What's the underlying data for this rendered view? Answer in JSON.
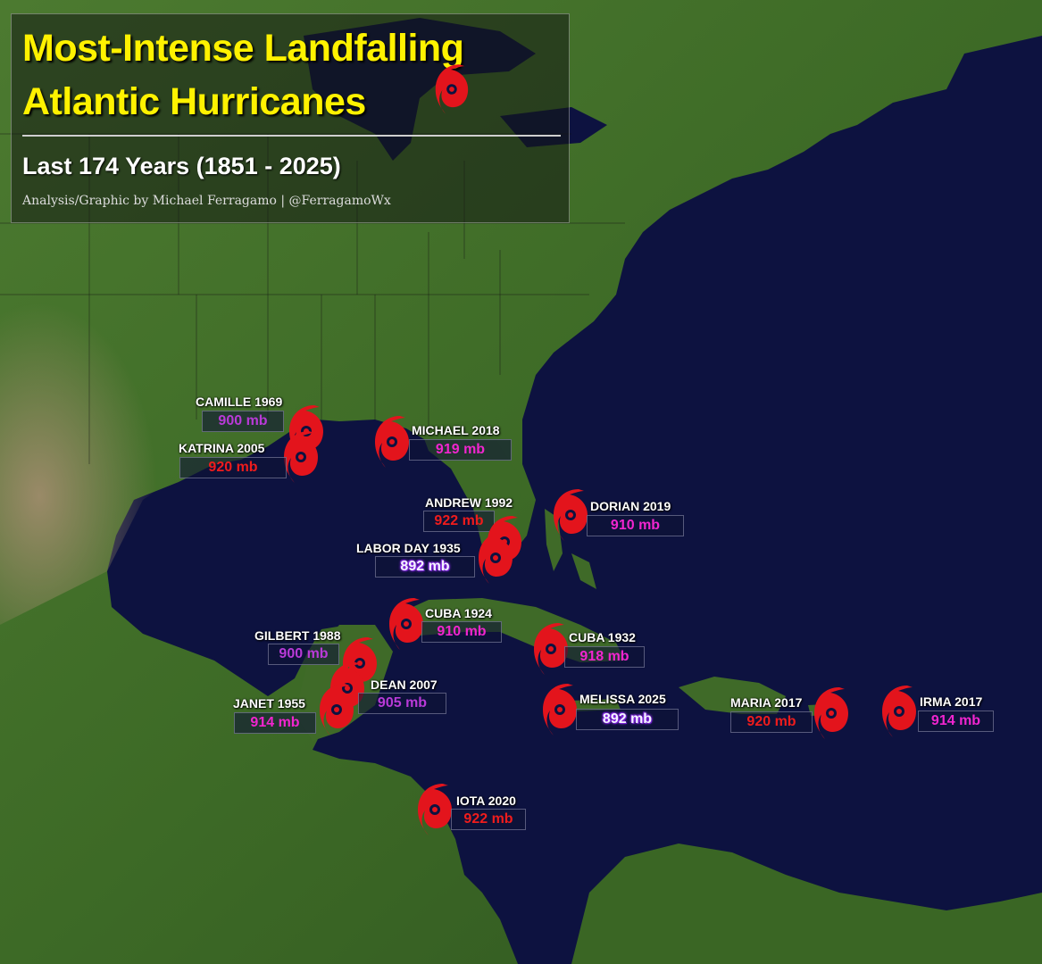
{
  "title": {
    "line1": "Most-Intense Landfalling",
    "line2": "Atlantic Hurricanes",
    "subtitle": "Last 174 Years (1851 - 2025)",
    "credit": "Analysis/Graphic by Michael Ferragamo | @FerragamoWx"
  },
  "colors": {
    "ocean": "#0d1240",
    "land": "#3f6a28",
    "title_text": "#fff200",
    "hurricane_icon": "#e3141c",
    "pressure_red": "#ef1c1c",
    "pressure_magenta": "#f125cf",
    "pressure_violet": "#b93ad8"
  },
  "icon": "hurricane-icon",
  "storms": [
    {
      "name": "CAMILLE 1969",
      "pressure": "900 mb",
      "color": "violet"
    },
    {
      "name": "KATRINA 2005",
      "pressure": "920 mb",
      "color": "red"
    },
    {
      "name": "MICHAEL 2018",
      "pressure": "919 mb",
      "color": "magenta"
    },
    {
      "name": "ANDREW 1992",
      "pressure": "922 mb",
      "color": "red"
    },
    {
      "name": "DORIAN 2019",
      "pressure": "910 mb",
      "color": "magenta"
    },
    {
      "name": "LABOR DAY 1935",
      "pressure": "892 mb",
      "color": "lavender"
    },
    {
      "name": "CUBA 1924",
      "pressure": "910 mb",
      "color": "magenta"
    },
    {
      "name": "GILBERT 1988",
      "pressure": "900 mb",
      "color": "violet"
    },
    {
      "name": "CUBA 1932",
      "pressure": "918 mb",
      "color": "magenta"
    },
    {
      "name": "DEAN 2007",
      "pressure": "905 mb",
      "color": "violet"
    },
    {
      "name": "JANET 1955",
      "pressure": "914 mb",
      "color": "magenta"
    },
    {
      "name": "MELISSA 2025",
      "pressure": "892 mb",
      "color": "lavender"
    },
    {
      "name": "MARIA 2017",
      "pressure": "920 mb",
      "color": "red"
    },
    {
      "name": "IRMA 2017",
      "pressure": "914 mb",
      "color": "magenta"
    },
    {
      "name": "IOTA 2020",
      "pressure": "922 mb",
      "color": "red"
    }
  ]
}
